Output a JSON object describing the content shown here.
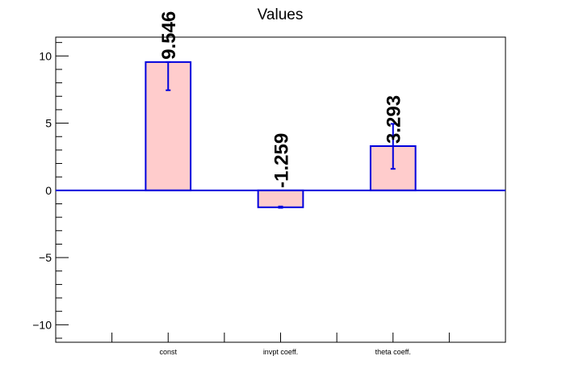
{
  "chart_data": {
    "type": "bar",
    "title": "Values",
    "xlabel": "",
    "ylabel": "",
    "categories": [
      "const",
      "invpt coeff.",
      "theta coeff."
    ],
    "values": [
      9.546,
      -1.259,
      3.293
    ],
    "value_labels": [
      "9.546",
      "-1.259",
      "3.293"
    ],
    "errors_low": [
      7.45,
      -1.3,
      1.6
    ],
    "errors_high": [
      9.546,
      -1.2,
      4.95
    ],
    "ylim": [
      -11.3,
      11.4
    ],
    "yticks": [
      -10,
      -5,
      0,
      5,
      10
    ],
    "ytick_labels": [
      "−10",
      "−5",
      "0",
      "5",
      "10"
    ],
    "grid": false,
    "legend": "none",
    "colors": {
      "bar_fill": "#ffcccc",
      "bar_edge": "#0000dd",
      "zero_line": "#0000dd",
      "frame": "#000000"
    }
  }
}
